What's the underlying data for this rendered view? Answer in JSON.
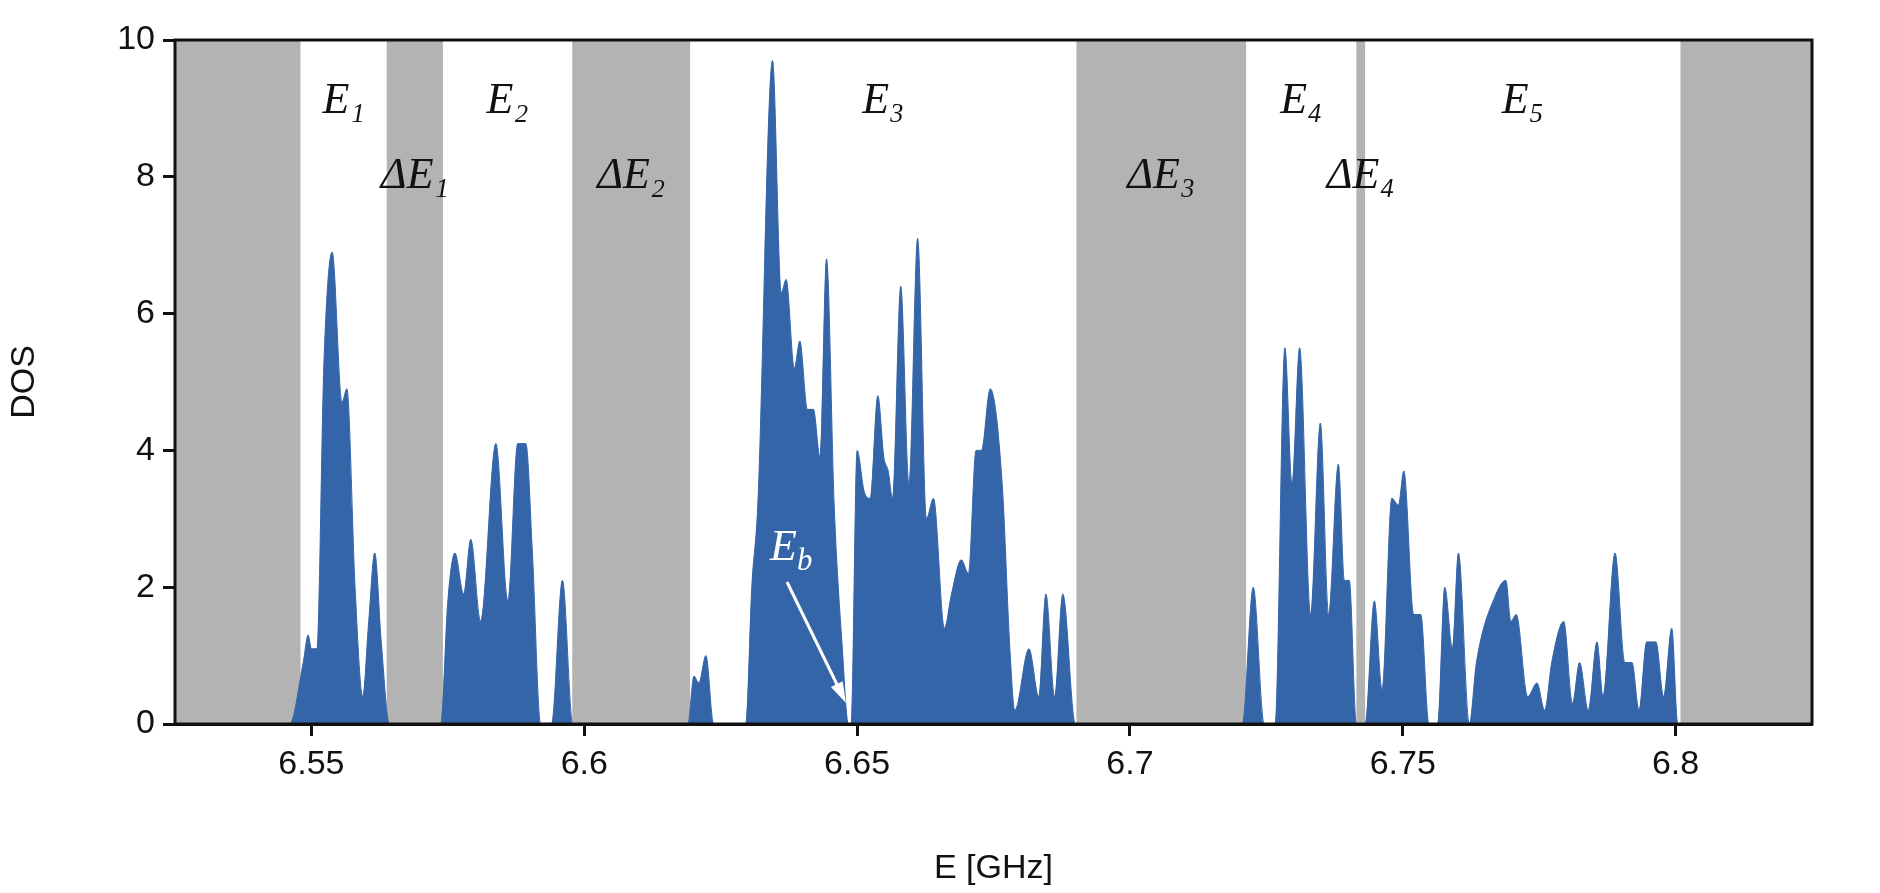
{
  "chart_data": {
    "type": "area",
    "xlabel": "E [GHz]",
    "ylabel": "DOS",
    "xlim": [
      6.525,
      6.825
    ],
    "xticks": [
      6.55,
      6.6,
      6.65,
      6.7,
      6.75,
      6.8
    ],
    "ylim": [
      0,
      10
    ],
    "yticks": [
      0,
      2,
      4,
      6,
      8,
      10
    ],
    "grid": false,
    "legend": false,
    "series": [
      {
        "color": "#3465a8",
        "x": [
          6.525,
          6.546,
          6.5485,
          6.5494,
          6.55,
          6.551,
          6.5523,
          6.5538,
          6.5556,
          6.5565,
          6.558,
          6.5594,
          6.5605,
          6.5616,
          6.5628,
          6.5643,
          6.5737,
          6.575,
          6.5763,
          6.5779,
          6.5792,
          6.581,
          6.5838,
          6.586,
          6.5878,
          6.5893,
          6.5905,
          6.592,
          6.594,
          6.596,
          6.5979,
          6.619,
          6.6201,
          6.621,
          6.6223,
          6.6237,
          6.6296,
          6.6307,
          6.6318,
          6.6345,
          6.6361,
          6.637,
          6.6385,
          6.6395,
          6.6409,
          6.642,
          6.6432,
          6.6444,
          6.6458,
          6.6473,
          6.6484,
          6.6489,
          6.65,
          6.6513,
          6.6524,
          6.6538,
          6.6549,
          6.6557,
          6.6565,
          6.658,
          6.6595,
          6.6611,
          6.6627,
          6.664,
          6.666,
          6.6673,
          6.6691,
          6.6704,
          6.6718,
          6.6728,
          6.6744,
          6.6766,
          6.678,
          6.6789,
          6.6815,
          6.6833,
          6.6846,
          6.6862,
          6.6877,
          6.69,
          6.7206,
          6.7226,
          6.7246,
          6.7266,
          6.7284,
          6.7297,
          6.7311,
          6.7331,
          6.7349,
          6.7364,
          6.7382,
          6.7393,
          6.7402,
          6.7415,
          6.7431,
          6.7448,
          6.7462,
          6.748,
          6.7492,
          6.7502,
          6.752,
          6.7533,
          6.7548,
          6.7564,
          6.7577,
          6.7591,
          6.7602,
          6.7622,
          6.7635,
          6.7671,
          6.7689,
          6.7698,
          6.7708,
          6.7729,
          6.7746,
          6.776,
          6.7773,
          6.7795,
          6.7811,
          6.7824,
          6.784,
          6.7856,
          6.7867,
          6.7889,
          6.7907,
          6.792,
          6.7933,
          6.7947,
          6.7964,
          6.7978,
          6.7993,
          6.8004,
          6.825
        ],
        "values": [
          0,
          0,
          0.9,
          1.3,
          1.1,
          1.1,
          5.3,
          6.9,
          4.7,
          4.9,
          2.0,
          0.4,
          1.5,
          2.5,
          1.2,
          0,
          0,
          1.8,
          2.5,
          1.9,
          2.7,
          1.5,
          4.1,
          1.8,
          4.1,
          4.1,
          2.5,
          0,
          0,
          2.1,
          0,
          0,
          0.7,
          0.6,
          1.0,
          0,
          0,
          2.0,
          3.2,
          9.7,
          6.3,
          6.5,
          5.2,
          5.6,
          4.6,
          4.6,
          3.9,
          6.8,
          3.2,
          1.1,
          0,
          0,
          4.0,
          3.4,
          3.3,
          4.8,
          3.9,
          3.7,
          3.3,
          6.4,
          3.5,
          7.1,
          3.0,
          3.3,
          1.4,
          1.9,
          2.4,
          2.2,
          4.0,
          4.0,
          4.9,
          3.5,
          1.1,
          0.2,
          1.1,
          0.4,
          1.9,
          0.4,
          1.9,
          0,
          0,
          2.0,
          0,
          0,
          5.5,
          3.5,
          5.5,
          1.6,
          4.4,
          1.6,
          3.8,
          2.1,
          2.1,
          0,
          0,
          1.8,
          0.5,
          3.3,
          3.2,
          3.7,
          1.6,
          1.6,
          0,
          0,
          2.0,
          1.1,
          2.5,
          0,
          0.9,
          1.9,
          2.1,
          1.5,
          1.6,
          0.4,
          0.6,
          0.2,
          0.9,
          1.5,
          0.3,
          0.9,
          0.2,
          1.2,
          0.4,
          2.5,
          0.9,
          0.9,
          0.2,
          1.2,
          1.2,
          0.4,
          1.4,
          0,
          0
        ]
      }
    ],
    "bands": [
      {
        "axis": "x",
        "from": 6.525,
        "to": 6.548,
        "label": null,
        "color": "#b3b3b3"
      },
      {
        "axis": "x",
        "from": 6.5638,
        "to": 6.5741,
        "label": "ΔE₁",
        "color": "#b3b3b3"
      },
      {
        "axis": "x",
        "from": 6.5978,
        "to": 6.6194,
        "label": "ΔE₂",
        "color": "#b3b3b3"
      },
      {
        "axis": "x",
        "from": 6.6902,
        "to": 6.7213,
        "label": "ΔE₃",
        "color": "#b3b3b3"
      },
      {
        "axis": "x",
        "from": 6.7415,
        "to": 6.7431,
        "label": "ΔE₄",
        "color": "#b3b3b3"
      },
      {
        "axis": "x",
        "from": 6.8009,
        "to": 6.825,
        "label": null,
        "color": "#b3b3b3"
      }
    ],
    "annotations": [
      "E₁",
      "E₂",
      "E₃",
      "E₄",
      "E₅",
      {
        "text": "E$_{b}$",
        "x": 6.648,
        "y": 0.3
      }
    ]
  }
}
